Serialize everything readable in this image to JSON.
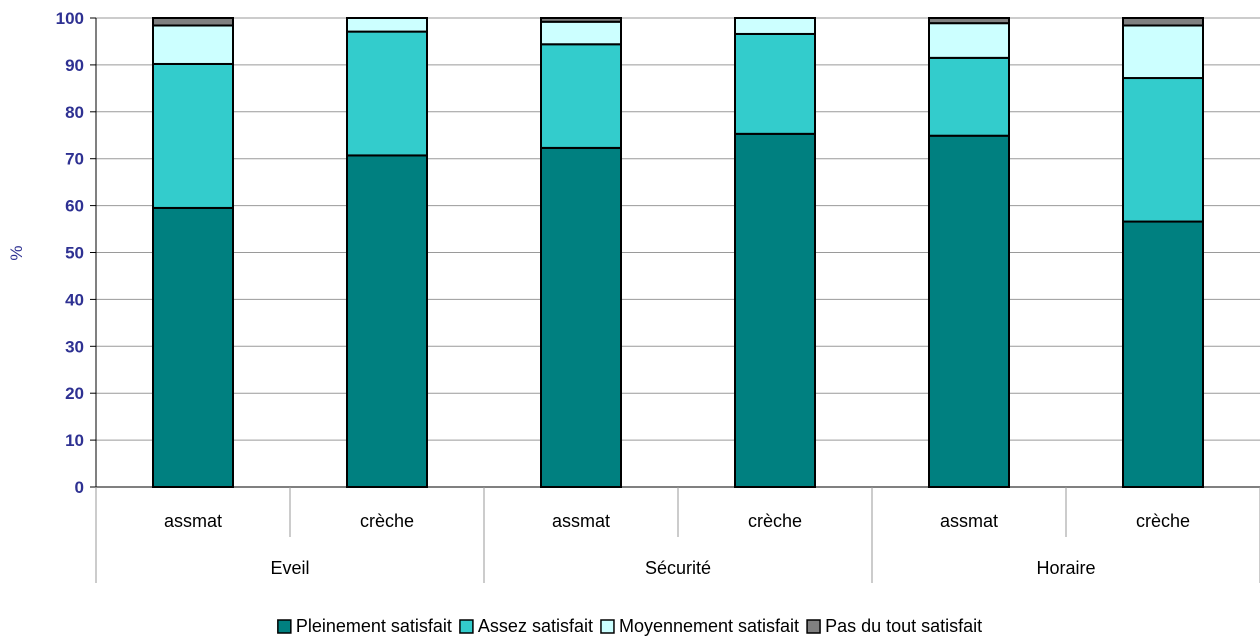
{
  "chart_data": {
    "type": "bar",
    "stacked": true,
    "ylabel": "%",
    "ylim": [
      0,
      100
    ],
    "yticks": [
      0,
      10,
      20,
      30,
      40,
      50,
      60,
      70,
      80,
      90,
      100
    ],
    "grid": true,
    "legend_position": "bottom",
    "groups": [
      "Eveil",
      "Sécurité",
      "Horaire"
    ],
    "categories": [
      "assmat",
      "crèche",
      "assmat",
      "crèche",
      "assmat",
      "crèche"
    ],
    "series": [
      {
        "name": "Pleinement satisfait",
        "color": "#008080",
        "values": [
          59.5,
          70.7,
          72.3,
          75.3,
          74.9,
          56.6
        ]
      },
      {
        "name": "Assez satisfait",
        "color": "#33cccc",
        "values": [
          30.7,
          26.4,
          22.1,
          21.3,
          16.6,
          30.6
        ]
      },
      {
        "name": "Moyennement satisfait",
        "color": "#ccffff",
        "values": [
          8.2,
          2.9,
          4.8,
          3.4,
          7.4,
          11.2
        ]
      },
      {
        "name": "Pas du tout satisfait",
        "color": "#808080",
        "values": [
          1.6,
          0.0,
          0.8,
          0.0,
          1.1,
          1.6
        ]
      }
    ]
  }
}
